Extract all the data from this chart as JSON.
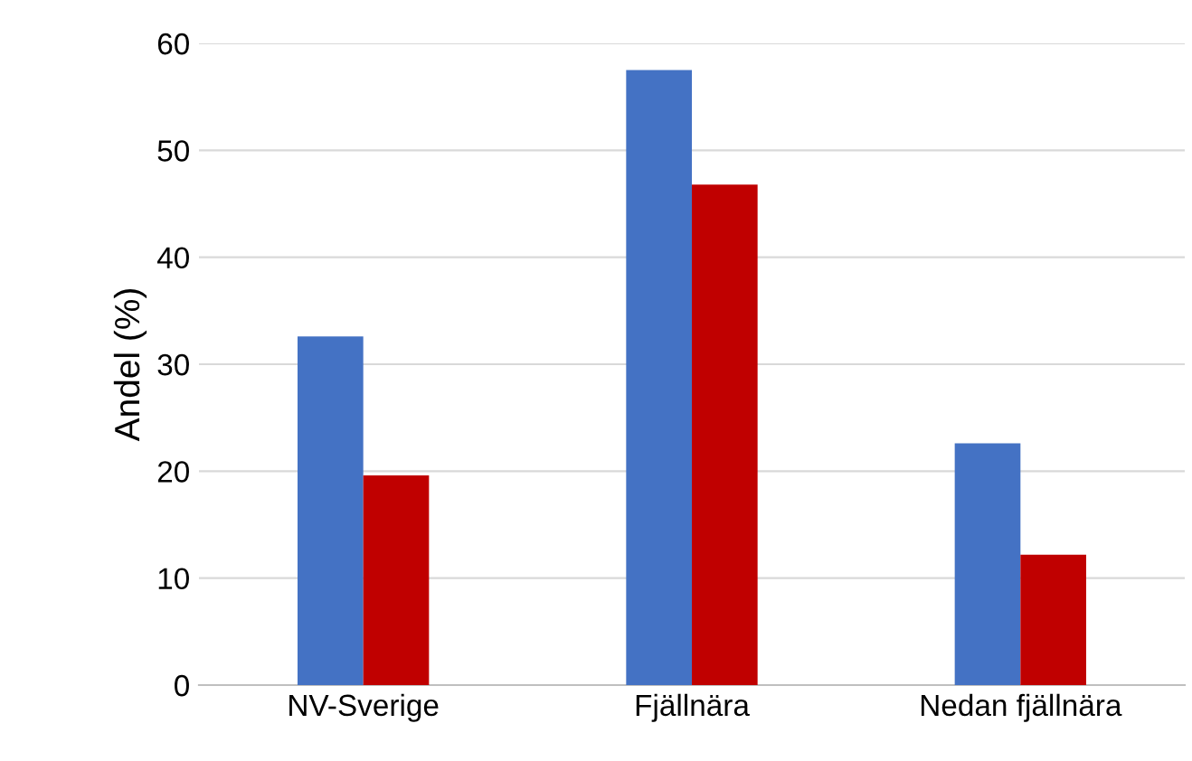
{
  "chart_data": {
    "type": "bar",
    "ylabel": "Andel (%)",
    "categories": [
      "NV-Sverige",
      "Fjällnära",
      "Nedan fjällnära"
    ],
    "series": [
      {
        "color": "#4472c4",
        "values": [
          32.6,
          57.5,
          22.6
        ]
      },
      {
        "color": "#c00000",
        "values": [
          19.6,
          46.8,
          12.2
        ]
      }
    ],
    "ylim": [
      0,
      60
    ],
    "yticks": [
      0,
      10,
      20,
      30,
      40,
      50,
      60
    ],
    "grid": "y",
    "legend": false
  }
}
